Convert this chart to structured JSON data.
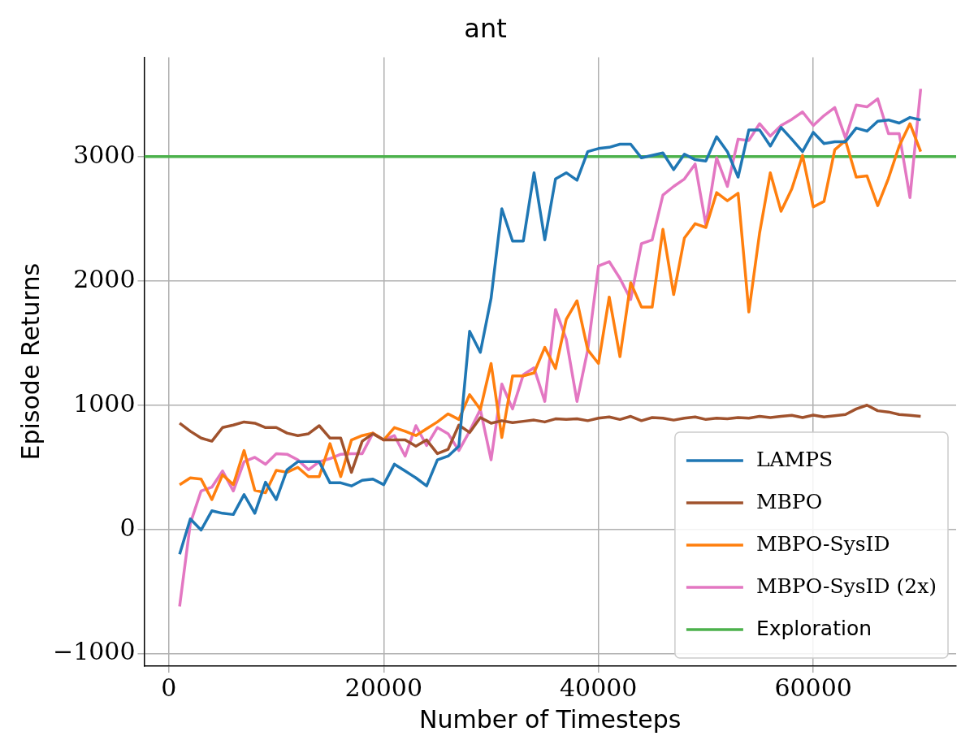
{
  "chart_data": {
    "type": "line",
    "title": "ant",
    "xlabel": "Number of Timesteps",
    "ylabel": "Episode Returns",
    "x": [
      1000,
      2000,
      3000,
      4000,
      5000,
      6000,
      7000,
      8000,
      9000,
      10000,
      11000,
      12000,
      13000,
      14000,
      15000,
      16000,
      17000,
      18000,
      19000,
      20000,
      21000,
      22000,
      23000,
      24000,
      25000,
      26000,
      27000,
      28000,
      29000,
      30000,
      31000,
      32000,
      33000,
      34000,
      35000,
      36000,
      37000,
      38000,
      39000,
      40000,
      41000,
      42000,
      43000,
      44000,
      45000,
      46000,
      47000,
      48000,
      49000,
      50000,
      51000,
      52000,
      53000,
      54000,
      55000,
      56000,
      57000,
      58000,
      59000,
      60000,
      61000,
      62000,
      63000,
      64000,
      65000,
      66000,
      67000,
      68000,
      69000,
      70000
    ],
    "series": [
      {
        "name": "LAMPS",
        "color": "#1f77b4",
        "values": [
          -200,
          85,
          -5,
          150,
          130,
          120,
          280,
          130,
          380,
          240,
          480,
          545,
          545,
          545,
          375,
          375,
          350,
          395,
          405,
          360,
          525,
          470,
          415,
          350,
          560,
          590,
          670,
          1595,
          1425,
          1860,
          2580,
          2320,
          2320,
          2870,
          2330,
          2820,
          2870,
          2810,
          3040,
          3065,
          3075,
          3100,
          3100,
          2990,
          3010,
          3030,
          2895,
          3020,
          2975,
          2965,
          3160,
          3040,
          2835,
          3215,
          3215,
          3085,
          3235,
          3140,
          3040,
          3195,
          3105,
          3120,
          3120,
          3230,
          3205,
          3285,
          3295,
          3270,
          3315,
          3295
        ]
      },
      {
        "name": "MBPO",
        "color": "#a0522d",
        "values": [
          855,
          790,
          735,
          710,
          820,
          840,
          865,
          855,
          820,
          820,
          775,
          755,
          770,
          835,
          735,
          735,
          460,
          710,
          770,
          720,
          720,
          720,
          670,
          720,
          610,
          645,
          840,
          780,
          900,
          855,
          875,
          860,
          870,
          880,
          865,
          890,
          885,
          890,
          875,
          895,
          905,
          885,
          910,
          875,
          900,
          895,
          880,
          895,
          905,
          885,
          895,
          890,
          900,
          895,
          910,
          900,
          910,
          918,
          900,
          920,
          905,
          915,
          925,
          970,
          1000,
          955,
          945,
          925,
          918,
          910
        ]
      },
      {
        "name": "MBPO-SysID",
        "color": "#ff7f0e",
        "values": [
          360,
          415,
          405,
          240,
          440,
          360,
          635,
          315,
          295,
          475,
          460,
          500,
          425,
          425,
          690,
          425,
          720,
          755,
          775,
          720,
          820,
          790,
          755,
          810,
          865,
          930,
          885,
          1085,
          965,
          1335,
          740,
          1235,
          1235,
          1260,
          1465,
          1295,
          1690,
          1840,
          1445,
          1335,
          1870,
          1390,
          1985,
          1790,
          1790,
          2415,
          1890,
          2345,
          2460,
          2430,
          2710,
          2645,
          2705,
          1750,
          2385,
          2870,
          2560,
          2740,
          3010,
          2595,
          2640,
          3055,
          3130,
          2835,
          2845,
          2605,
          2825,
          3085,
          3265,
          3040
        ]
      },
      {
        "name": "MBPO-SysID (2x)",
        "color": "#e377c2",
        "values": [
          -620,
          50,
          310,
          340,
          470,
          310,
          545,
          580,
          525,
          610,
          605,
          560,
          480,
          545,
          570,
          605,
          610,
          610,
          775,
          720,
          755,
          590,
          835,
          675,
          820,
          770,
          635,
          790,
          965,
          560,
          1170,
          970,
          1245,
          1300,
          1030,
          1770,
          1530,
          1030,
          1445,
          2120,
          2155,
          2020,
          1850,
          2300,
          2330,
          2690,
          2760,
          2820,
          2940,
          2450,
          2990,
          2760,
          3140,
          3130,
          3265,
          3165,
          3250,
          3300,
          3360,
          3250,
          3330,
          3395,
          3150,
          3415,
          3400,
          3465,
          3185,
          3185,
          2670,
          3545
        ]
      }
    ],
    "ref_lines": [
      {
        "axis": "y",
        "value": 3000,
        "label": "Exploration",
        "color": "#4cb14c"
      }
    ],
    "xlim": [
      -2300,
      73300
    ],
    "xticks": [
      0,
      20000,
      40000,
      60000
    ],
    "ylim": [
      -1100,
      3800
    ],
    "yticks": [
      {
        "value": -1000,
        "label": "−1000"
      },
      0,
      1000,
      2000,
      3000
    ],
    "grid": true,
    "legend": "bottom right",
    "marker": "none",
    "line_style": "solid"
  }
}
